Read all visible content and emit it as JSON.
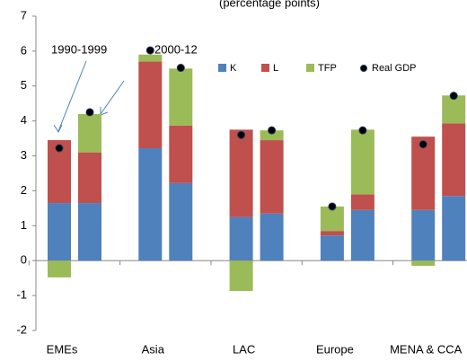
{
  "chart_data": {
    "type": "bar",
    "stacked": true,
    "title": "(percentage points)",
    "categories": [
      "EMEs",
      "Asia",
      "LAC",
      "Europe",
      "MENA & CCA"
    ],
    "annotations": [
      "1990-1999",
      "2000-12"
    ],
    "series": [
      {
        "name": "K",
        "color": "#4f81bd",
        "values": [
          [
            1.65,
            1.65
          ],
          [
            3.22,
            2.22
          ],
          [
            1.25,
            1.35
          ],
          [
            0.72,
            1.45
          ],
          [
            1.45,
            1.85
          ]
        ]
      },
      {
        "name": "L",
        "color": "#c0504d",
        "values": [
          [
            1.8,
            1.45
          ],
          [
            2.48,
            1.65
          ],
          [
            2.5,
            2.1
          ],
          [
            0.13,
            0.45
          ],
          [
            2.1,
            2.08
          ]
        ]
      },
      {
        "name": "TFP",
        "color": "#9bbb59",
        "values": [
          [
            -0.48,
            1.1
          ],
          [
            0.2,
            1.63
          ],
          [
            -0.87,
            0.28
          ],
          [
            0.7,
            1.85
          ],
          [
            -0.15,
            0.8
          ]
        ]
      },
      {
        "name": "Real GDP",
        "type": "scatter",
        "color": "#000000",
        "values": [
          [
            3.22,
            4.25
          ],
          [
            6.02,
            5.52
          ],
          [
            3.6,
            3.73
          ],
          [
            1.55,
            3.73
          ],
          [
            3.33,
            4.72
          ]
        ]
      }
    ],
    "ylim": [
      -2,
      7
    ],
    "yticks": [
      -2,
      -1,
      0,
      1,
      2,
      3,
      4,
      5,
      6,
      7
    ],
    "grid": false,
    "legend": "top-right"
  }
}
